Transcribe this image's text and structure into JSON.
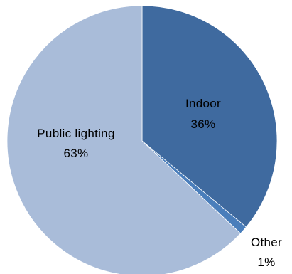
{
  "chart_data": {
    "type": "pie",
    "slices": [
      {
        "label": "Indoor",
        "value": 36,
        "value_label": "36%",
        "color": "#3f6a9f"
      },
      {
        "label": "Other",
        "value": 1,
        "value_label": "1%",
        "color": "#4a7ebb"
      },
      {
        "label": "Public lighting",
        "value": 63,
        "value_label": "63%",
        "color": "#a9bcd9"
      }
    ],
    "start_angle_deg": 0,
    "direction": "clockwise",
    "legend": "none"
  }
}
